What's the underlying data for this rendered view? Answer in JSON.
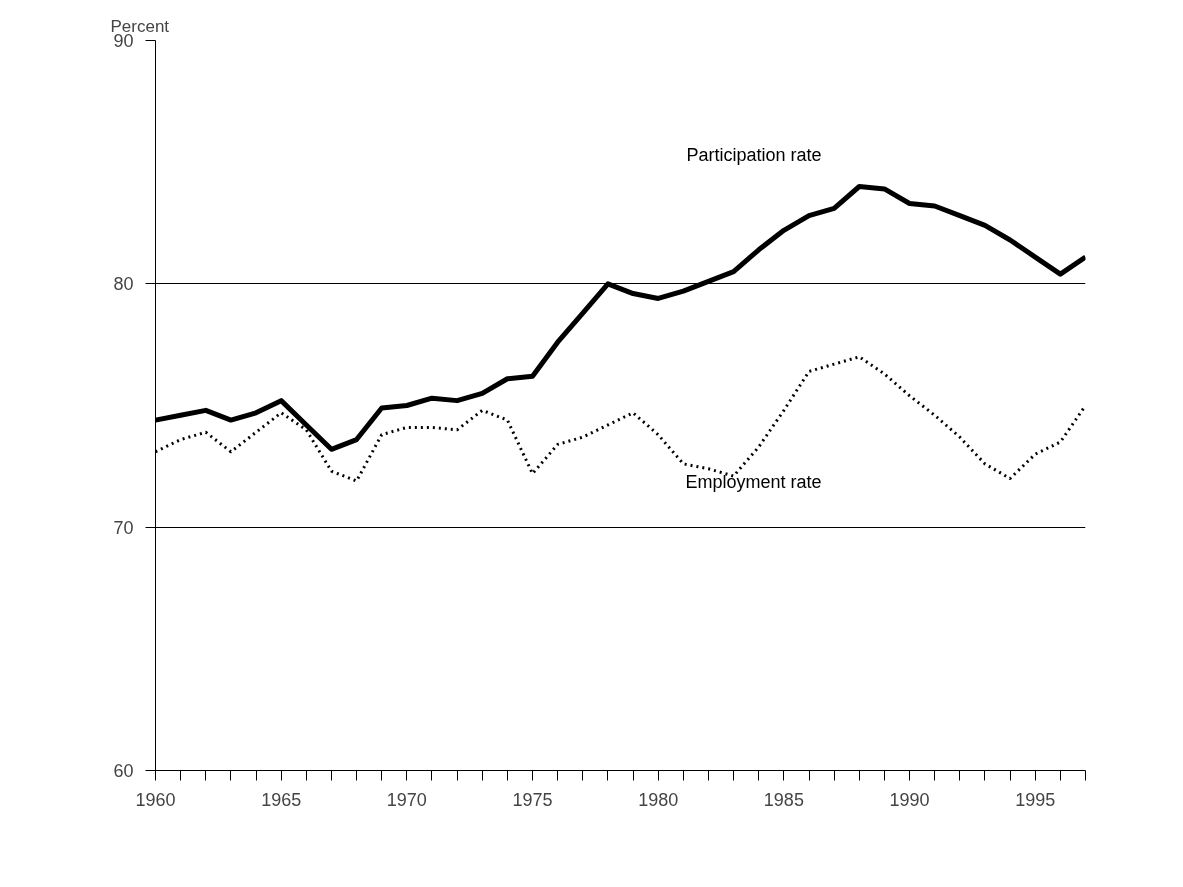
{
  "chart_data": {
    "type": "line",
    "ylabel": "Percent",
    "x": [
      1960,
      1961,
      1962,
      1963,
      1964,
      1965,
      1966,
      1967,
      1968,
      1969,
      1970,
      1971,
      1972,
      1973,
      1974,
      1975,
      1976,
      1977,
      1978,
      1979,
      1980,
      1981,
      1982,
      1983,
      1984,
      1985,
      1986,
      1987,
      1988,
      1989,
      1990,
      1991,
      1992,
      1993,
      1994,
      1995,
      1996,
      1997
    ],
    "series": [
      {
        "name": "Participation rate",
        "color": "#000000",
        "line_style": "solid",
        "values": [
          74.4,
          74.6,
          74.8,
          74.4,
          74.7,
          75.2,
          74.2,
          73.2,
          73.6,
          74.9,
          75.0,
          75.3,
          75.2,
          75.5,
          76.1,
          76.2,
          77.6,
          78.8,
          80.0,
          79.6,
          79.4,
          79.7,
          80.1,
          80.5,
          81.4,
          82.2,
          82.8,
          83.1,
          84.0,
          83.9,
          83.3,
          83.2,
          82.8,
          82.4,
          81.8,
          81.1,
          80.4,
          81.1
        ]
      },
      {
        "name": "Employment rate",
        "color": "#000000",
        "line_style": "dotted",
        "values": [
          73.1,
          73.6,
          73.9,
          73.1,
          73.9,
          74.7,
          74.0,
          72.3,
          71.9,
          73.8,
          74.1,
          74.1,
          74.0,
          74.8,
          74.4,
          72.2,
          73.4,
          73.7,
          74.2,
          74.7,
          73.8,
          72.6,
          72.4,
          72.1,
          73.3,
          74.8,
          76.4,
          76.7,
          77.0,
          76.3,
          75.4,
          74.6,
          73.7,
          72.6,
          72.0,
          73.0,
          73.5,
          75.0
        ]
      }
    ],
    "xlim": [
      1960,
      1997
    ],
    "ylim": [
      60,
      90
    ],
    "yticks": [
      60,
      70,
      80,
      90
    ],
    "xticks": [
      1960,
      {
        "value": 1961,
        "label": null
      },
      {
        "value": 1962,
        "label": null
      },
      {
        "value": 1963,
        "label": null
      },
      {
        "value": 1964,
        "label": null
      },
      1965,
      {
        "value": 1966,
        "label": null
      },
      {
        "value": 1967,
        "label": null
      },
      {
        "value": 1968,
        "label": null
      },
      {
        "value": 1969,
        "label": null
      },
      1970,
      {
        "value": 1971,
        "label": null
      },
      {
        "value": 1972,
        "label": null
      },
      {
        "value": 1973,
        "label": null
      },
      {
        "value": 1974,
        "label": null
      },
      1975,
      {
        "value": 1976,
        "label": null
      },
      {
        "value": 1977,
        "label": null
      },
      {
        "value": 1978,
        "label": null
      },
      {
        "value": 1979,
        "label": null
      },
      1980,
      {
        "value": 1981,
        "label": null
      },
      {
        "value": 1982,
        "label": null
      },
      {
        "value": 1983,
        "label": null
      },
      {
        "value": 1984,
        "label": null
      },
      1985,
      {
        "value": 1986,
        "label": null
      },
      {
        "value": 1987,
        "label": null
      },
      {
        "value": 1988,
        "label": null
      },
      {
        "value": 1989,
        "label": null
      },
      1990,
      {
        "value": 1991,
        "label": null
      },
      {
        "value": 1992,
        "label": null
      },
      {
        "value": 1993,
        "label": null
      },
      {
        "value": 1994,
        "label": null
      },
      1995,
      {
        "value": 1996,
        "label": null
      },
      {
        "value": 1997,
        "label": null
      }
    ],
    "grid": "y",
    "legend": false,
    "marker": "none"
  }
}
